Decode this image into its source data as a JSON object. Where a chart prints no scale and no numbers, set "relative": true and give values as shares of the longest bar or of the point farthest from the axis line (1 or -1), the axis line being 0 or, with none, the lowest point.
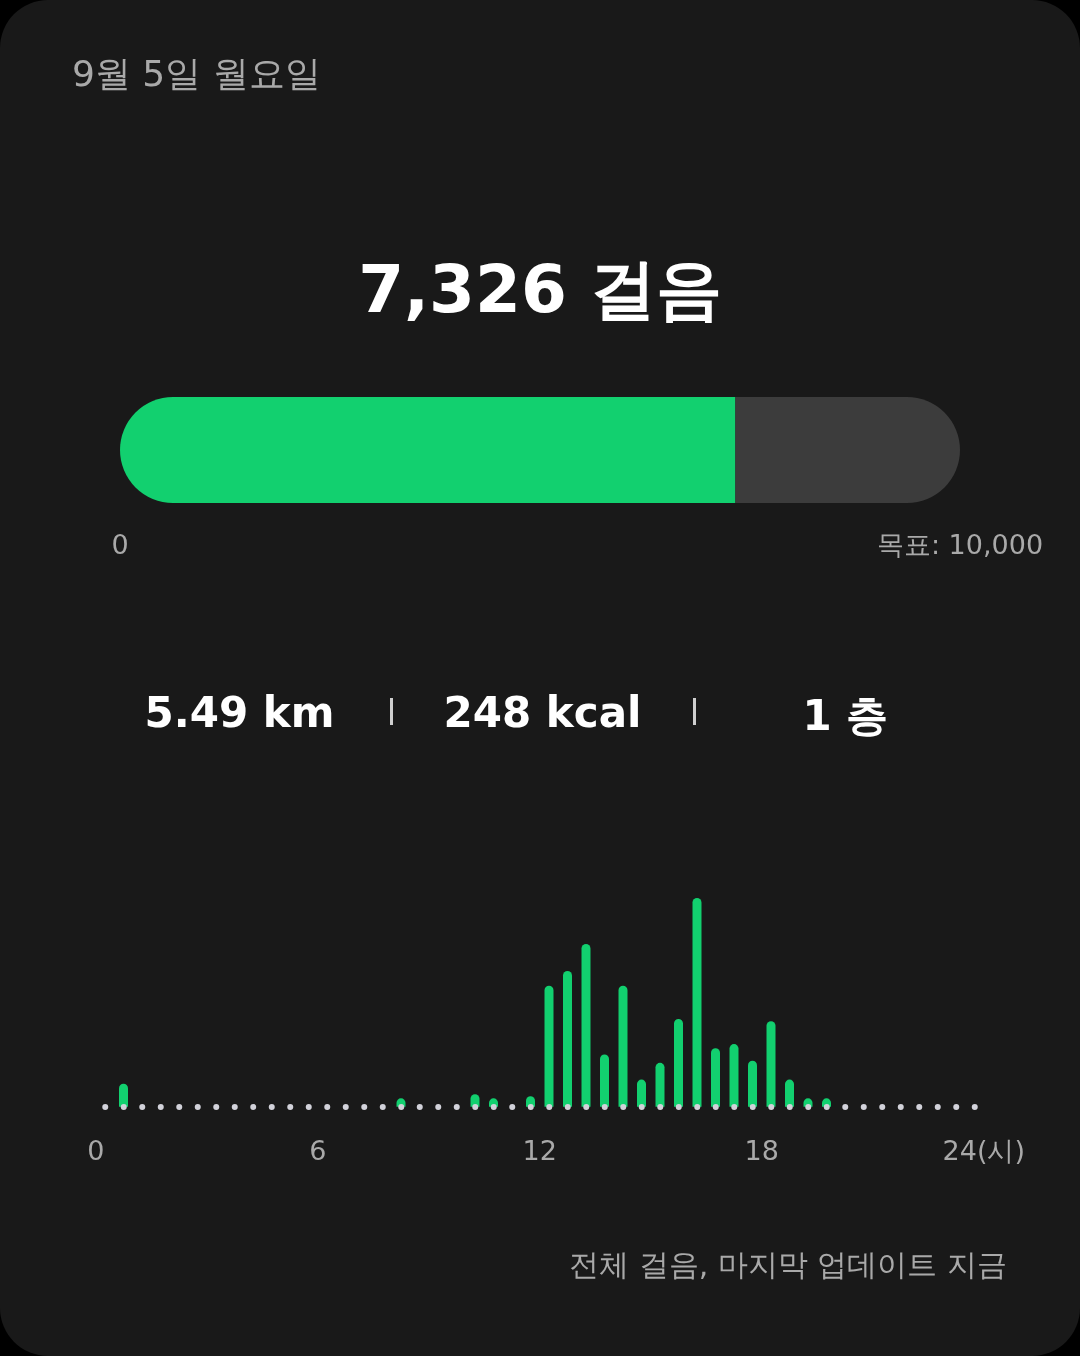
{
  "chart_data": [
    {
      "type": "bar",
      "title": "9월 5일 월요일",
      "subtitle": "7,326 걸음",
      "orientation": "horizontal",
      "stacked": true,
      "categories": [
        null
      ],
      "series": [
        {
          "color": "#12d06f",
          "values": [
            7326
          ]
        },
        {
          "color": "#3c3c3c",
          "values": [
            2674
          ]
        }
      ],
      "xlim": [
        0,
        10000
      ],
      "xticks": [
        0,
        {
          "value": 10000,
          "label": "목표: 10,000"
        }
      ]
    },
    {
      "type": "other",
      "annotations": [
        "5.49 km",
        "248 kcal",
        "1 층"
      ]
    },
    {
      "type": "bar",
      "relative": true,
      "color": "#12d06f",
      "x": [
        0.25,
        0.75,
        1.25,
        1.75,
        2.25,
        2.75,
        3.25,
        3.75,
        4.25,
        4.75,
        5.25,
        5.75,
        6.25,
        6.75,
        7.25,
        7.75,
        8.25,
        8.75,
        9.25,
        9.75,
        10.25,
        10.75,
        11.25,
        11.75,
        12.25,
        12.75,
        13.25,
        13.75,
        14.25,
        14.75,
        15.25,
        15.75,
        16.25,
        16.75,
        17.25,
        17.75,
        18.25,
        18.75,
        19.25,
        19.75,
        20.25,
        20.75,
        21.25,
        21.75,
        22.25,
        22.75,
        23.25,
        23.75
      ],
      "values": [
        0,
        0.11,
        0,
        0,
        0,
        0,
        0,
        0,
        0,
        0,
        0,
        0,
        0,
        0,
        0,
        0,
        0.04,
        0,
        0,
        0,
        0.06,
        0.04,
        0,
        0.05,
        0.58,
        0.65,
        0.78,
        0.25,
        0.58,
        0.13,
        0.21,
        0.42,
        1,
        0.28,
        0.3,
        0.22,
        0.41,
        0.13,
        0.04,
        0.04,
        0,
        0,
        0,
        0,
        0,
        0,
        0,
        0
      ],
      "xlim": [
        0,
        24
      ],
      "xticks": [
        0,
        6,
        12,
        18,
        {
          "value": 24,
          "label": "24(시)"
        }
      ],
      "ref_lines": [
        {
          "axis": "y",
          "value": 0,
          "color": "#d2d2da",
          "line_style": "dotted"
        }
      ],
      "annotations": [
        "전체 걸음, 마지막 업데이트 지금"
      ]
    }
  ]
}
